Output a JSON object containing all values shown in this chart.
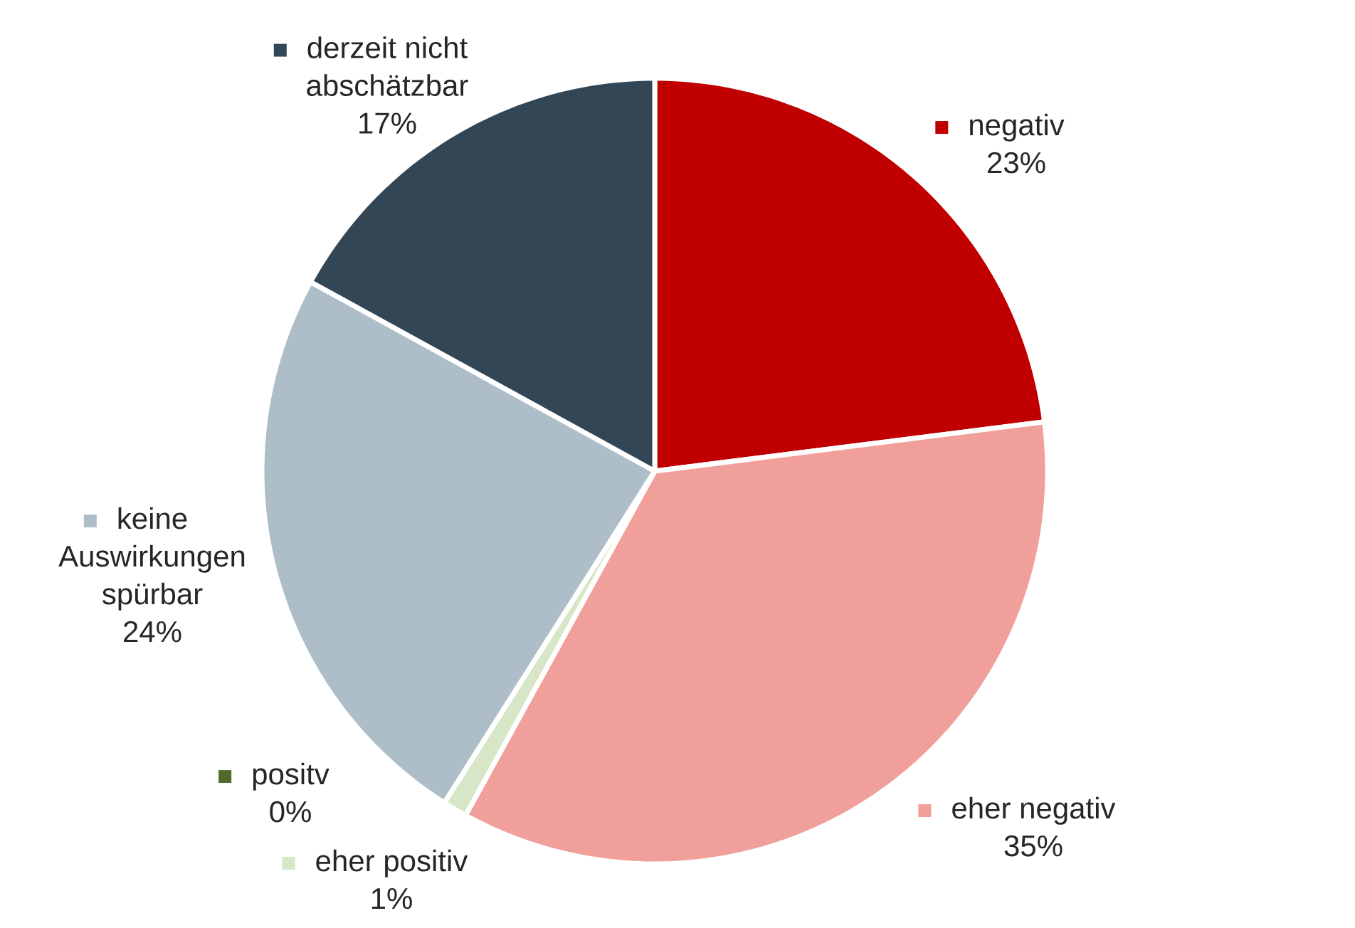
{
  "chart_data": {
    "type": "pie",
    "categories": [
      "negativ",
      "eher negativ",
      "eher positiv",
      "positv",
      "keine Auswirkungen spürbar",
      "derzeit nicht abschätzbar"
    ],
    "values": [
      23,
      35,
      1,
      0,
      24,
      17
    ],
    "value_labels": [
      "23%",
      "35%",
      "1%",
      "0%",
      "24%",
      "17%"
    ],
    "colors": [
      "#c00000",
      "#f19f9b",
      "#d6e6c6",
      "#4e6b2a",
      "#aebec8",
      "#334655"
    ],
    "legend": "center"
  }
}
